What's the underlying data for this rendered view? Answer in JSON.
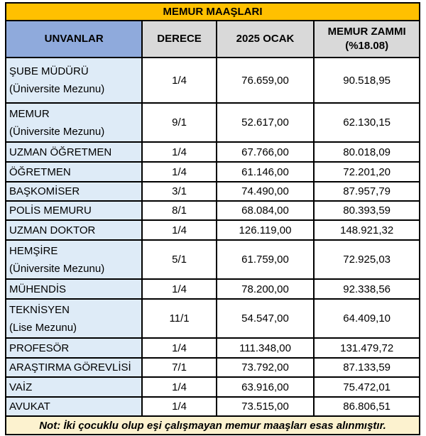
{
  "title": "MEMUR MAAŞLARI",
  "header": {
    "unvanlar": "UNVANLAR",
    "derece": "DERECE",
    "ocak": "2025 OCAK",
    "zam_line1": "MEMUR ZAMMI",
    "zam_line2": "(%18.08)"
  },
  "table": {
    "rows": [
      {
        "title": "ŞUBE MÜDÜRÜ",
        "subtitle": "(Üniversite Mezunu)",
        "derece": "1/4",
        "ocak": "76.659,00",
        "zam": "90.518,95"
      },
      {
        "title": "MEMUR",
        "subtitle": "(Üniversite Mezunu)",
        "derece": "9/1",
        "ocak": "52.617,00",
        "zam": "62.130,15"
      },
      {
        "title": "UZMAN ÖĞRETMEN",
        "subtitle": "",
        "derece": "1/4",
        "ocak": "67.766,00",
        "zam": "80.018,09"
      },
      {
        "title": "ÖĞRETMEN",
        "subtitle": "",
        "derece": "1/4",
        "ocak": "61.146,00",
        "zam": "72.201,20"
      },
      {
        "title": "BAŞKOMİSER",
        "subtitle": "",
        "derece": "3/1",
        "ocak": "74.490,00",
        "zam": "87.957,79"
      },
      {
        "title": "POLİS MEMURU",
        "subtitle": "",
        "derece": "8/1",
        "ocak": "68.084,00",
        "zam": "80.393,59"
      },
      {
        "title": "UZMAN DOKTOR",
        "subtitle": "",
        "derece": "1/4",
        "ocak": "126.119,00",
        "zam": "148.921,32"
      },
      {
        "title": "HEMŞİRE",
        "subtitle": "(Üniversite Mezunu)",
        "derece": "5/1",
        "ocak": "61.759,00",
        "zam": "72.925,03"
      },
      {
        "title": "MÜHENDİS",
        "subtitle": "",
        "derece": "1/4",
        "ocak": "78.200,00",
        "zam": "92.338,56"
      },
      {
        "title": "TEKNİSYEN",
        "subtitle": "(Lise Mezunu)",
        "derece": "11/1",
        "ocak": "54.547,00",
        "zam": "64.409,10"
      },
      {
        "title": "PROFESÖR",
        "subtitle": "",
        "derece": "1/4",
        "ocak": "111.348,00",
        "zam": "131.479,72"
      },
      {
        "title": "ARAŞTIRMA GÖREVLİSİ",
        "subtitle": "",
        "derece": "7/1",
        "ocak": "73.792,00",
        "zam": "87.133,59"
      },
      {
        "title": "VAİZ",
        "subtitle": "",
        "derece": "1/4",
        "ocak": "63.916,00",
        "zam": "75.472,01"
      },
      {
        "title": "AVUKAT",
        "subtitle": "",
        "derece": "1/4",
        "ocak": "73.515,00",
        "zam": "86.806,51"
      }
    ]
  },
  "note": "Not: İki çocuklu olup eşi çalışmayan memur maaşları esas alınmıştır.",
  "colors": {
    "title_bg": "#FFC000",
    "header_blue": "#8FAADC",
    "header_gray": "#D9D9D9",
    "row_blue": "#DEEBF7",
    "note_bg": "#FCF2CF",
    "note_red": "#C00000",
    "border": "#000000"
  }
}
